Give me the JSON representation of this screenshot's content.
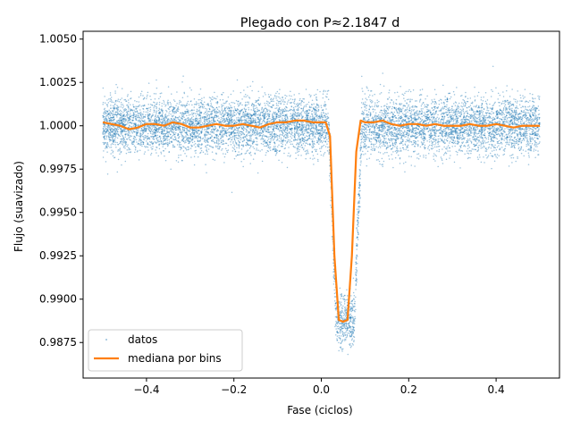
{
  "chart_data": {
    "type": "scatter",
    "title": "Plegado con P≈2.1847 d",
    "xlabel": "Fase (ciclos)",
    "ylabel": "Flujo (suavizado)",
    "xlim": [
      -0.545,
      0.545
    ],
    "ylim": [
      0.98545,
      1.00545
    ],
    "xticks": [
      -0.4,
      -0.2,
      0.0,
      0.2,
      0.4
    ],
    "xtick_labels": [
      "−0.4",
      "−0.2",
      "0.0",
      "0.2",
      "0.4"
    ],
    "yticks": [
      0.9875,
      0.99,
      0.9925,
      0.995,
      0.9975,
      1.0,
      1.0025,
      1.005
    ],
    "ytick_labels": [
      "0.9875",
      "0.9900",
      "0.9925",
      "0.9950",
      "0.9975",
      "1.0000",
      "1.0025",
      "1.0050"
    ],
    "grid": false,
    "legend_position": "lower-left",
    "series": [
      {
        "name": "datos",
        "kind": "scatter",
        "color": "#1f77b4",
        "x_range": [
          -0.5,
          0.5
        ],
        "baseline": 1.0,
        "scatter_std": 0.0008,
        "transit_center": 0.055,
        "transit_depth": 0.0113,
        "transit_full_width": 0.075
      },
      {
        "name": "mediana por bins",
        "kind": "line",
        "color": "#ff7f0e",
        "x": [
          -0.5,
          -0.48,
          -0.46,
          -0.44,
          -0.42,
          -0.4,
          -0.38,
          -0.36,
          -0.34,
          -0.32,
          -0.3,
          -0.28,
          -0.26,
          -0.24,
          -0.22,
          -0.2,
          -0.18,
          -0.16,
          -0.14,
          -0.12,
          -0.1,
          -0.08,
          -0.06,
          -0.04,
          -0.02,
          0.0,
          0.01,
          0.02,
          0.03,
          0.04,
          0.05,
          0.06,
          0.07,
          0.08,
          0.09,
          0.1,
          0.12,
          0.14,
          0.16,
          0.18,
          0.2,
          0.22,
          0.24,
          0.26,
          0.28,
          0.3,
          0.32,
          0.34,
          0.36,
          0.38,
          0.4,
          0.42,
          0.44,
          0.46,
          0.48,
          0.5
        ],
        "y": [
          1.0002,
          1.0001,
          1.0,
          0.9998,
          0.9999,
          1.0001,
          1.0001,
          1.0,
          1.0002,
          1.0001,
          0.9999,
          0.9999,
          1.0,
          1.0001,
          1.0,
          1.0,
          1.0001,
          1.0,
          0.9999,
          1.0001,
          1.0002,
          1.0002,
          1.0003,
          1.0003,
          1.0002,
          1.0002,
          1.0002,
          0.9994,
          0.9925,
          0.9888,
          0.9887,
          0.9888,
          0.9925,
          0.9985,
          1.0003,
          1.0002,
          1.0002,
          1.0003,
          1.0001,
          1.0,
          1.0001,
          1.0001,
          1.0,
          1.0001,
          1.0,
          1.0,
          1.0,
          1.0001,
          1.0,
          1.0,
          1.0001,
          1.0,
          0.9999,
          1.0,
          1.0,
          1.0
        ]
      }
    ]
  }
}
